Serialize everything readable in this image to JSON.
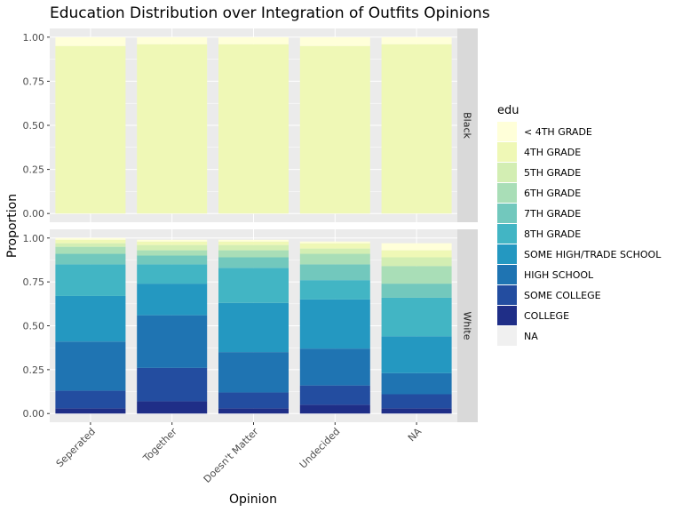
{
  "chart_data": {
    "type": "bar",
    "stacked": true,
    "normalized": true,
    "title": "Education Distribution over Integration of Outfits Opinions",
    "xlabel": "Opinion",
    "ylabel": "Proportion",
    "ylim": [
      0,
      1
    ],
    "yticks": [
      "0.00",
      "0.25",
      "0.50",
      "0.75",
      "1.00"
    ],
    "categories": [
      "Seperated",
      "Together",
      "Doesn't Matter",
      "Undecided",
      "NA"
    ],
    "facets": [
      "Black",
      "White"
    ],
    "legend": {
      "title": "edu",
      "position": "right",
      "items": [
        {
          "label": "< 4TH GRADE",
          "color": "#ffffd9"
        },
        {
          "label": "4TH GRADE",
          "color": "#eff8b6"
        },
        {
          "label": "5TH GRADE",
          "color": "#d3eeb3"
        },
        {
          "label": "6TH GRADE",
          "color": "#a9deb7"
        },
        {
          "label": "7TH GRADE",
          "color": "#72c8bd"
        },
        {
          "label": "8TH GRADE",
          "color": "#42b5c4"
        },
        {
          "label": "SOME HIGH/TRADE SCHOOL",
          "color": "#2498c1"
        },
        {
          "label": "HIGH SCHOOL",
          "color": "#1f74b2"
        },
        {
          "label": "SOME COLLEGE",
          "color": "#234da0"
        },
        {
          "label": "COLLEGE",
          "color": "#1f2e87"
        },
        {
          "label": "NA",
          "color": "#f0f0f0"
        }
      ]
    },
    "stack_order_bottom_to_top": [
      "COLLEGE",
      "SOME COLLEGE",
      "HIGH SCHOOL",
      "SOME HIGH/TRADE SCHOOL",
      "8TH GRADE",
      "7TH GRADE",
      "6TH GRADE",
      "5TH GRADE",
      "4TH GRADE",
      "< 4TH GRADE",
      "NA"
    ],
    "series": [
      {
        "name": "Black",
        "stacks": [
          {
            "4TH GRADE": 0.95,
            "< 4TH GRADE": 0.05
          },
          {
            "4TH GRADE": 0.96,
            "< 4TH GRADE": 0.04
          },
          {
            "4TH GRADE": 0.96,
            "< 4TH GRADE": 0.04
          },
          {
            "4TH GRADE": 0.95,
            "< 4TH GRADE": 0.05
          },
          {
            "4TH GRADE": 0.96,
            "< 4TH GRADE": 0.04
          }
        ]
      },
      {
        "name": "White",
        "stacks": [
          {
            "COLLEGE": 0.03,
            "SOME COLLEGE": 0.1,
            "HIGH SCHOOL": 0.28,
            "SOME HIGH/TRADE SCHOOL": 0.26,
            "8TH GRADE": 0.18,
            "7TH GRADE": 0.06,
            "6TH GRADE": 0.04,
            "5TH GRADE": 0.02,
            "4TH GRADE": 0.02,
            "< 4TH GRADE": 0.01
          },
          {
            "COLLEGE": 0.07,
            "SOME COLLEGE": 0.19,
            "HIGH SCHOOL": 0.3,
            "SOME HIGH/TRADE SCHOOL": 0.18,
            "8TH GRADE": 0.11,
            "7TH GRADE": 0.05,
            "6TH GRADE": 0.03,
            "5TH GRADE": 0.03,
            "4TH GRADE": 0.02,
            "< 4TH GRADE": 0.01
          },
          {
            "COLLEGE": 0.03,
            "SOME COLLEGE": 0.09,
            "HIGH SCHOOL": 0.23,
            "SOME HIGH/TRADE SCHOOL": 0.28,
            "8TH GRADE": 0.2,
            "7TH GRADE": 0.06,
            "6TH GRADE": 0.04,
            "5TH GRADE": 0.03,
            "4TH GRADE": 0.02,
            "< 4TH GRADE": 0.01
          },
          {
            "COLLEGE": 0.05,
            "SOME COLLEGE": 0.11,
            "HIGH SCHOOL": 0.21,
            "SOME HIGH/TRADE SCHOOL": 0.28,
            "8TH GRADE": 0.11,
            "7TH GRADE": 0.09,
            "6TH GRADE": 0.06,
            "5TH GRADE": 0.03,
            "4TH GRADE": 0.03,
            "< 4TH GRADE": 0.01
          },
          {
            "COLLEGE": 0.03,
            "SOME COLLEGE": 0.08,
            "HIGH SCHOOL": 0.12,
            "SOME HIGH/TRADE SCHOOL": 0.21,
            "8TH GRADE": 0.22,
            "7TH GRADE": 0.08,
            "6TH GRADE": 0.1,
            "5TH GRADE": 0.05,
            "4TH GRADE": 0.04,
            "< 4TH GRADE": 0.04
          }
        ]
      }
    ]
  }
}
